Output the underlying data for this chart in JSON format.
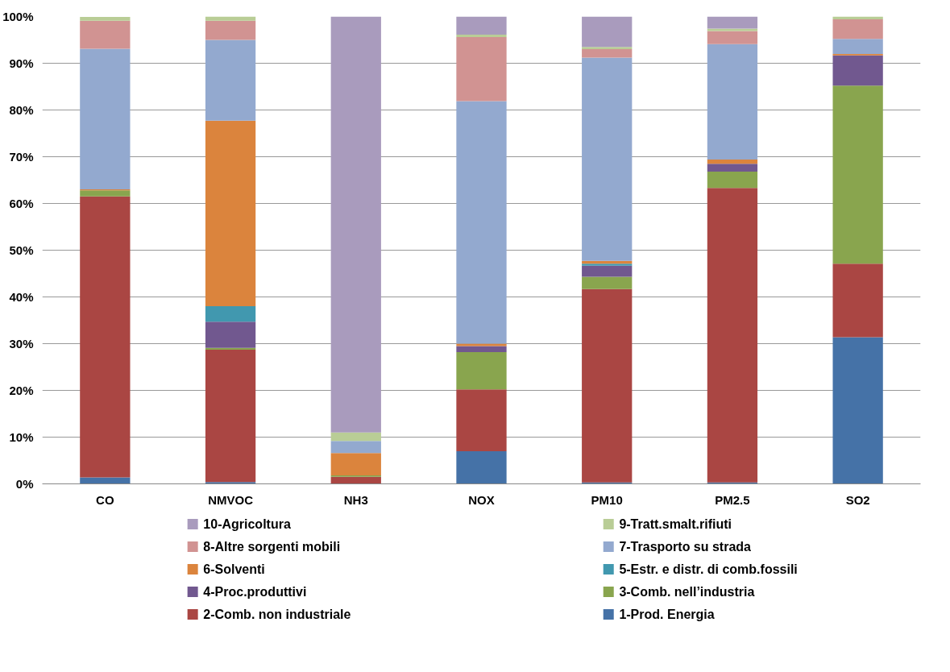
{
  "chart_data": {
    "type": "bar",
    "stacked": true,
    "categories": [
      "CO",
      "NMVOC",
      "NH3",
      "NOX",
      "PM10",
      "PM2.5",
      "SO2"
    ],
    "ylim": [
      0,
      100
    ],
    "yticks": [
      {
        "value": 0,
        "label": "0%"
      },
      {
        "value": 10,
        "label": "10%"
      },
      {
        "value": 20,
        "label": "20%"
      },
      {
        "value": 30,
        "label": "30%"
      },
      {
        "value": 40,
        "label": "40%"
      },
      {
        "value": 50,
        "label": "50%"
      },
      {
        "value": 60,
        "label": "60%"
      },
      {
        "value": 70,
        "label": "70%"
      },
      {
        "value": 80,
        "label": "80%"
      },
      {
        "value": 90,
        "label": "90%"
      },
      {
        "value": 100,
        "label": "100%"
      }
    ],
    "grid": "y",
    "legend": "bottom",
    "series": [
      {
        "name": "1-Prod. Energia",
        "color": "#4572a7",
        "values": [
          1.4,
          0.4,
          0,
          7.0,
          0.3,
          0.3,
          31.4
        ]
      },
      {
        "name": "2-Comb. non industriale",
        "color": "#aa4643",
        "values": [
          60.1,
          28.3,
          1.5,
          13.2,
          41.4,
          63.0,
          15.7
        ]
      },
      {
        "name": "3-Comb. nell’industria",
        "color": "#89a54e",
        "values": [
          1.3,
          0.4,
          0.3,
          8.0,
          2.6,
          3.5,
          38.1
        ]
      },
      {
        "name": "4-Proc.produttivi",
        "color": "#71588f",
        "values": [
          null,
          5.6,
          0,
          1.3,
          2.4,
          1.7,
          6.5
        ]
      },
      {
        "name": "5-Estr. e distr. di comb.fossili",
        "color": "#4198af",
        "values": [
          0,
          3.3,
          0,
          0,
          0.4,
          0,
          0
        ]
      },
      {
        "name": "6-Solventi",
        "color": "#db843d",
        "values": [
          0.2,
          39.7,
          4.8,
          0.5,
          0.6,
          0.9,
          0.3
        ]
      },
      {
        "name": "7-Trasporto su strada",
        "color": "#93a9cf",
        "values": [
          30.1,
          17.3,
          2.6,
          51.9,
          43.5,
          24.7,
          3.2
        ]
      },
      {
        "name": "8-Altre sorgenti mobili",
        "color": "#d19392",
        "values": [
          6.0,
          4.1,
          0,
          13.7,
          1.8,
          2.8,
          4.2
        ]
      },
      {
        "name": "9-Tratt.smalt.rifiuti",
        "color": "#b9cd96",
        "values": [
          0.8,
          0.9,
          1.8,
          0.5,
          0.5,
          0.5,
          0.6
        ]
      },
      {
        "name": "10-Agricoltura",
        "color": "#a99bbd",
        "values": [
          0,
          0,
          89.0,
          3.9,
          6.5,
          2.6,
          0
        ]
      }
    ]
  }
}
